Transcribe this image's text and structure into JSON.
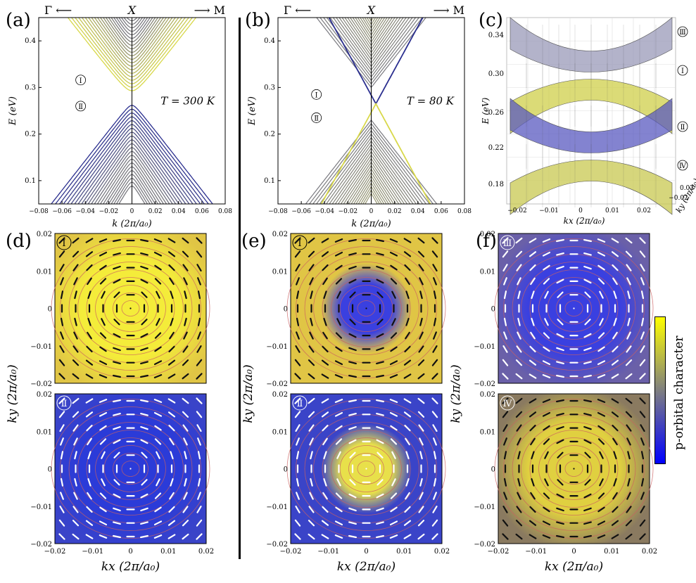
{
  "panels": {
    "a": {
      "label": "(a)",
      "temp": "T = 300 K",
      "left_dir": "Γ ⟵",
      "center": "X",
      "right_dir": "⟶ M",
      "marks": [
        "Ⅰ",
        "Ⅱ"
      ],
      "xlabel": "k (2π/a₀)",
      "ylabel": "E (eV)",
      "xticks": [
        "−0.08",
        "−0.06",
        "−0.04",
        "−0.02",
        "0",
        "0.02",
        "0.04",
        "0.06",
        "0.08"
      ],
      "yticks": [
        "0.1",
        "0.2",
        "0.3",
        "0.4"
      ]
    },
    "b": {
      "label": "(b)",
      "temp": "T = 80 K",
      "left_dir": "Γ ⟵",
      "center": "X",
      "right_dir": "⟶ M",
      "marks": [
        "Ⅰ",
        "Ⅱ"
      ],
      "xlabel": "k (2π/a₀)",
      "ylabel": "E (eV)",
      "xticks": [
        "−0.08",
        "−0.06",
        "−0.04",
        "−0.02",
        "0",
        "0.02",
        "0.04",
        "0.06",
        "0.08"
      ],
      "yticks": [
        "0.1",
        "0.2",
        "0.3",
        "0.4"
      ]
    },
    "c": {
      "label": "(c)",
      "marks": [
        "Ⅲ",
        "Ⅰ",
        "Ⅱ",
        "Ⅳ"
      ],
      "ylabel": "E (eV)",
      "xlabel": "kx (2π/a₀)",
      "klabel": "ky (2π/a₀)",
      "zticks": [
        "0.34",
        "0.30",
        "0.26",
        "0.22",
        "0.18"
      ],
      "xticks": [
        "−0.02",
        "−0.01",
        "0",
        "0.01",
        "0.02"
      ],
      "kticks": [
        "0.02",
        "−0.02"
      ]
    },
    "d": {
      "label": "(d)",
      "top_mark": "Ⅰ",
      "bottom_mark": "Ⅱ"
    },
    "e": {
      "label": "(e)",
      "top_mark": "Ⅰ",
      "bottom_mark": "Ⅱ"
    },
    "f": {
      "label": "(f)",
      "top_mark": "Ⅲ",
      "bottom_mark": "Ⅳ"
    }
  },
  "map_ticks": {
    "x": [
      "−0.02",
      "−0.01",
      "0",
      "0.01",
      "0.02"
    ],
    "y": [
      "0.02",
      "0.01",
      "0",
      "−0.01",
      "−0.02"
    ]
  },
  "map_xlabel": "kx (2π/a₀)",
  "map_ylabel": "ky (2π/a₀)",
  "colorbar": {
    "label": "p-orbital character",
    "colors": [
      "#ffff00",
      "#0000ff"
    ]
  },
  "colors": {
    "blue": "#2b2f8f",
    "yellow": "#d8d84a",
    "map_yellow": "#e0c545",
    "map_blue": "#3a3ad8"
  }
}
